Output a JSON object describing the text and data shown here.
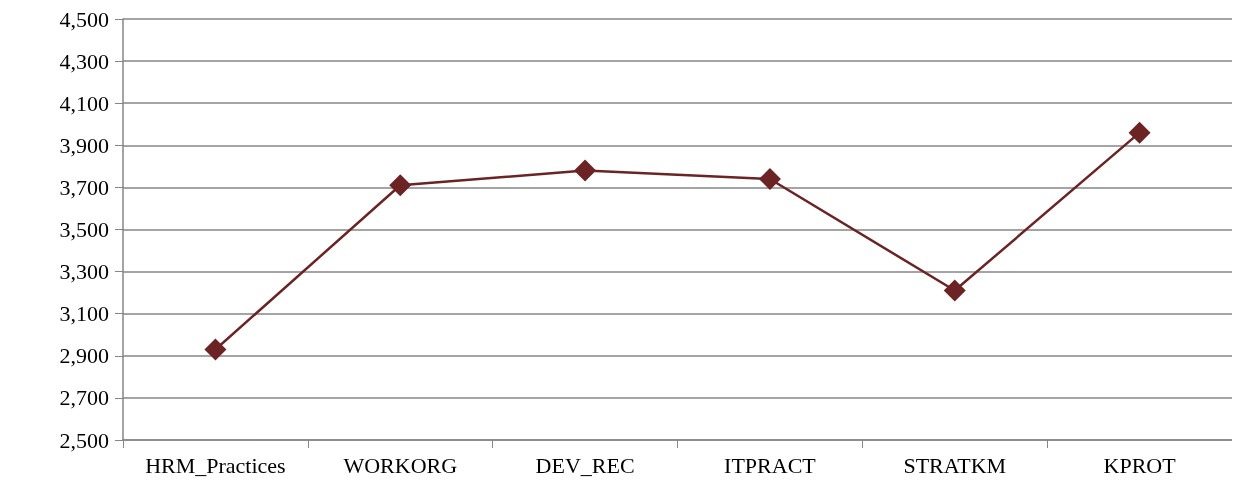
{
  "chart_data": {
    "type": "line",
    "categories": [
      "HRM_Practices",
      "WORKORG",
      "DEV_REC",
      "ITPRACT",
      "STRATKM",
      "KPROT"
    ],
    "series": [
      {
        "color": "#6b2324",
        "values": [
          2930,
          3710,
          3780,
          3740,
          3210,
          3960
        ]
      }
    ],
    "ylim": [
      2500,
      4500
    ],
    "yticks": [
      {
        "value": 2500,
        "label": "2,500"
      },
      {
        "value": 2700,
        "label": "2,700"
      },
      {
        "value": 2900,
        "label": "2,900"
      },
      {
        "value": 3100,
        "label": "3,100"
      },
      {
        "value": 3300,
        "label": "3,300"
      },
      {
        "value": 3500,
        "label": "3,500"
      },
      {
        "value": 3700,
        "label": "3,700"
      },
      {
        "value": 3900,
        "label": "3,900"
      },
      {
        "value": 4100,
        "label": "4,100"
      },
      {
        "value": 4300,
        "label": "4,300"
      },
      {
        "value": 4500,
        "label": "4,500"
      }
    ],
    "grid": "y",
    "marker": "diamond",
    "line_style": "solid"
  }
}
